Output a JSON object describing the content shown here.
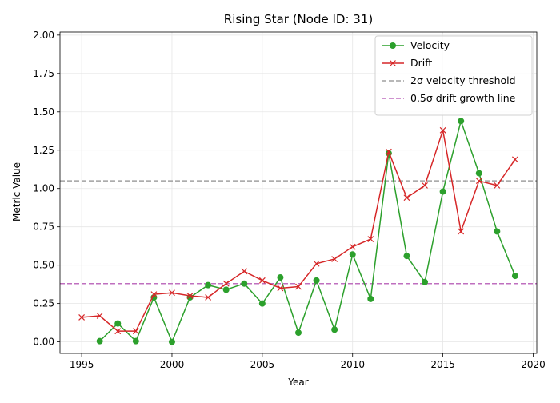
{
  "chart_data": {
    "type": "line",
    "title": "Rising Star (Node ID: 31)",
    "xlabel": "Year",
    "ylabel": "Metric Value",
    "xlim": [
      1993.8,
      2020.2
    ],
    "ylim": [
      -0.075,
      2.02
    ],
    "xticks": [
      1995,
      2000,
      2005,
      2010,
      2015,
      2020
    ],
    "yticks": [
      0.0,
      0.25,
      0.5,
      0.75,
      1.0,
      1.25,
      1.5,
      1.75,
      2.0
    ],
    "xtick_labels": [
      "1995",
      "2000",
      "2005",
      "2010",
      "2015",
      "2020"
    ],
    "ytick_labels": [
      "0.00",
      "0.25",
      "0.50",
      "0.75",
      "1.00",
      "1.25",
      "1.50",
      "1.75",
      "2.00"
    ],
    "grid": true,
    "legend_position": "top-right",
    "series": [
      {
        "name": "Velocity",
        "color": "#2ca02c",
        "marker": "circle",
        "x": [
          1996,
          1997,
          1998,
          1999,
          2000,
          2001,
          2002,
          2003,
          2004,
          2005,
          2006,
          2007,
          2008,
          2009,
          2010,
          2011,
          2012,
          2013,
          2014,
          2015,
          2016,
          2017,
          2018,
          2019
        ],
        "y": [
          0.005,
          0.12,
          0.005,
          0.29,
          0.0,
          0.29,
          0.37,
          0.34,
          0.38,
          0.25,
          0.42,
          0.06,
          0.4,
          0.08,
          0.57,
          0.28,
          1.23,
          0.56,
          0.39,
          0.98,
          1.44,
          1.1,
          0.72,
          0.43
        ]
      },
      {
        "name": "Drift",
        "color": "#d62728",
        "marker": "x",
        "x": [
          1995,
          1996,
          1997,
          1998,
          1999,
          2000,
          2001,
          2002,
          2003,
          2004,
          2005,
          2006,
          2007,
          2008,
          2009,
          2010,
          2011,
          2012,
          2013,
          2014,
          2015,
          2016,
          2017,
          2018,
          2019
        ],
        "y": [
          0.16,
          0.17,
          0.07,
          0.07,
          0.31,
          0.32,
          0.3,
          0.29,
          0.38,
          0.46,
          0.4,
          0.35,
          0.36,
          0.51,
          0.54,
          0.62,
          0.67,
          1.24,
          0.94,
          1.02,
          1.38,
          0.72,
          1.05,
          1.02,
          1.19
        ]
      }
    ],
    "reference_lines": [
      {
        "name": "2σ velocity threshold",
        "y": 1.05,
        "color": "#a0a0a0",
        "style": "dashed"
      },
      {
        "name": "0.5σ drift growth line",
        "y": 0.38,
        "color": "#bf6fbf",
        "style": "dashed"
      }
    ]
  }
}
